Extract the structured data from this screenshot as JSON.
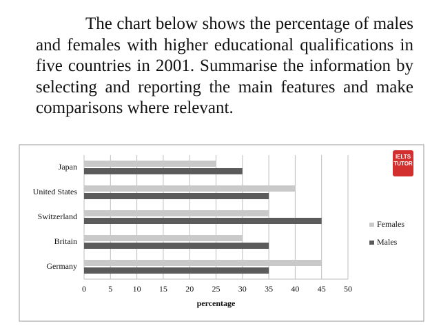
{
  "prompt": "The chart below shows the percentage of males and females with higher educational qualifications in five countries in 2001. Summarise the information by selecting and reporting the main features and make comparisons where relevant.",
  "logo": [
    "IELTS",
    "TUTOR"
  ],
  "chart_data": {
    "type": "hbar",
    "x_label": "percentage",
    "categories": [
      "Japan",
      "United States",
      "Switzerland",
      "Britain",
      "Germany"
    ],
    "series": [
      {
        "name": "Females",
        "color": "#c9c9c9",
        "values": [
          25,
          40,
          35,
          30,
          45
        ]
      },
      {
        "name": "Males",
        "color": "#5b5b5b",
        "values": [
          30,
          35,
          45,
          35,
          35
        ]
      }
    ],
    "xlim": [
      0,
      50
    ],
    "xticks": [
      0,
      5,
      10,
      15,
      20,
      25,
      30,
      35,
      40,
      45,
      50
    ],
    "grid": true,
    "legend": "right"
  }
}
